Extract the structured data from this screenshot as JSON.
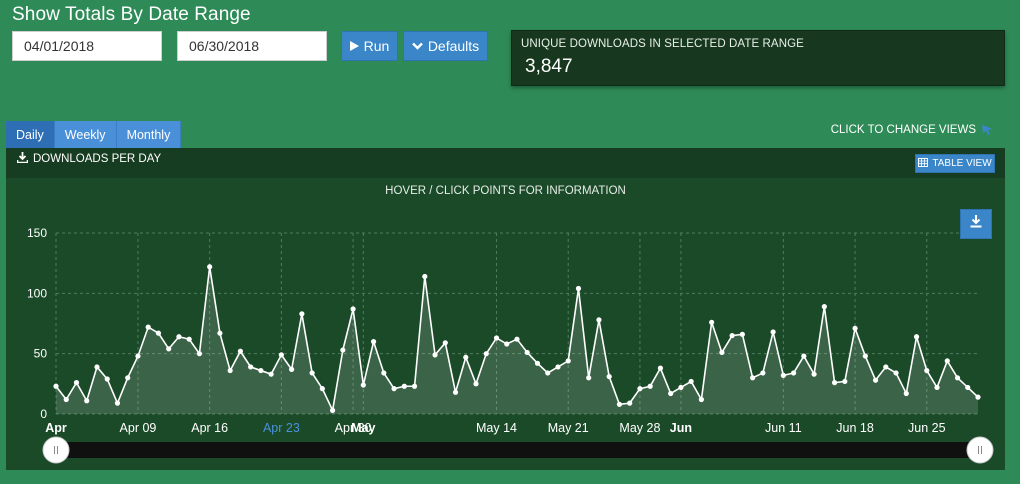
{
  "page_title": "Show Totals By Date Range",
  "inputs": {
    "start_date": "04/01/2018",
    "end_date": "06/30/2018"
  },
  "buttons": {
    "run": "Run",
    "defaults": "Defaults",
    "table_view": "TABLE VIEW"
  },
  "summary": {
    "label": "UNIQUE DOWNLOADS IN SELECTED DATE RANGE",
    "value": "3,847"
  },
  "tabs": [
    {
      "label": "Daily",
      "active": true
    },
    {
      "label": "Weekly",
      "active": false
    },
    {
      "label": "Monthly",
      "active": false
    }
  ],
  "change_views_label": "CLICK TO CHANGE VIEWS",
  "panel": {
    "title": "DOWNLOADS PER DAY",
    "hint": "HOVER / CLICK POINTS FOR INFORMATION"
  },
  "icons": {
    "run": "play-icon",
    "defaults": "chevron-down-icon",
    "change_views": "pointer-icon",
    "panel": "download-icon",
    "table_view": "table-icon",
    "export": "download-icon"
  },
  "colors": {
    "background": "#2e8b57",
    "panel": "#1b4a29",
    "accent": "#3a86c8",
    "line": "#ffffff",
    "highlight_tick": "#4a90d9"
  },
  "chart_data": {
    "type": "area",
    "title": "",
    "xlabel": "",
    "ylabel": "",
    "ylim": [
      0,
      150
    ],
    "yticks": [
      0,
      50,
      100,
      150
    ],
    "grid": true,
    "x_start": "2018-04-01",
    "x_end": "2018-06-30",
    "xticks": [
      {
        "label": "Apr",
        "day": 0,
        "bold": true,
        "highlight": false
      },
      {
        "label": "Apr 09",
        "day": 8,
        "bold": false,
        "highlight": false
      },
      {
        "label": "Apr 16",
        "day": 15,
        "bold": false,
        "highlight": false
      },
      {
        "label": "Apr 23",
        "day": 22,
        "bold": false,
        "highlight": true
      },
      {
        "label": "Apr 30",
        "day": 29,
        "bold": false,
        "highlight": false
      },
      {
        "label": "May",
        "day": 30,
        "bold": true,
        "highlight": false
      },
      {
        "label": "May 14",
        "day": 43,
        "bold": false,
        "highlight": false
      },
      {
        "label": "May 21",
        "day": 50,
        "bold": false,
        "highlight": false
      },
      {
        "label": "May 28",
        "day": 57,
        "bold": false,
        "highlight": false
      },
      {
        "label": "Jun",
        "day": 61,
        "bold": true,
        "highlight": false
      },
      {
        "label": "Jun 11",
        "day": 71,
        "bold": false,
        "highlight": false
      },
      {
        "label": "Jun 18",
        "day": 78,
        "bold": false,
        "highlight": false
      },
      {
        "label": "Jun 25",
        "day": 85,
        "bold": false,
        "highlight": false
      }
    ],
    "series": [
      {
        "values": [
          23,
          12,
          26,
          11,
          39,
          29,
          9,
          30,
          48,
          72,
          67,
          54,
          64,
          62,
          50,
          122,
          67,
          36,
          52,
          39,
          36,
          33,
          49,
          37,
          83,
          34,
          21,
          3,
          53,
          87,
          24,
          60,
          34,
          21,
          23,
          23,
          114,
          49,
          59,
          18,
          47,
          25,
          50,
          63,
          58,
          62,
          51,
          42,
          34,
          39,
          44,
          104,
          30,
          78,
          31,
          8,
          9,
          21,
          23,
          38,
          17,
          22,
          27,
          12,
          76,
          51,
          65,
          66,
          30,
          34,
          68,
          32,
          34,
          48,
          33,
          89,
          26,
          27,
          71,
          48,
          28,
          39,
          34,
          17,
          64,
          36,
          22,
          44,
          30,
          22,
          14
        ]
      }
    ]
  }
}
